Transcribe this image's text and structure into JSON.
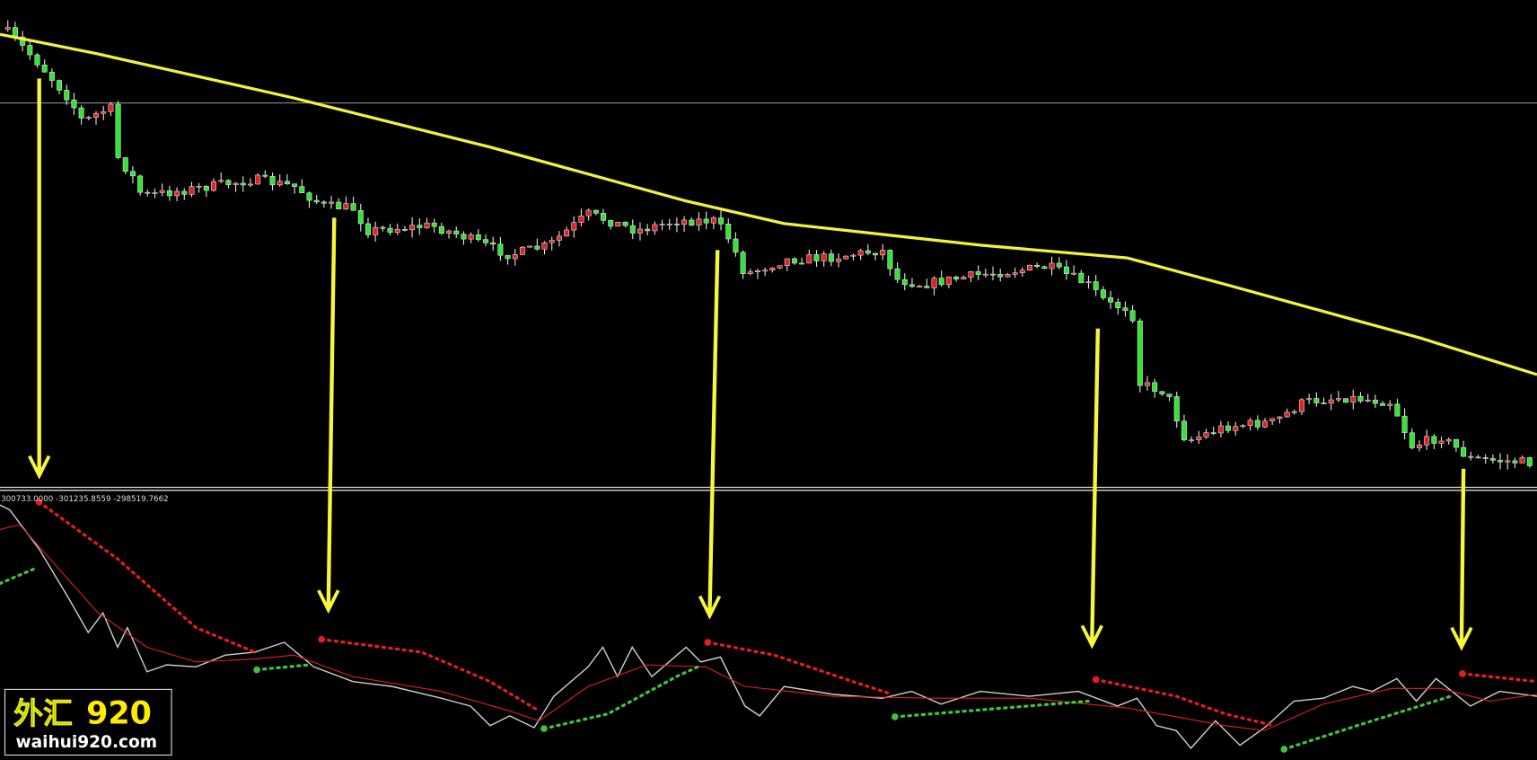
{
  "indicator": {
    "label": "300733.0000 -301235.8559 -298519.7662"
  },
  "logo": {
    "brand": "外汇",
    "number": "920",
    "site": "waihui920.com"
  }
}
